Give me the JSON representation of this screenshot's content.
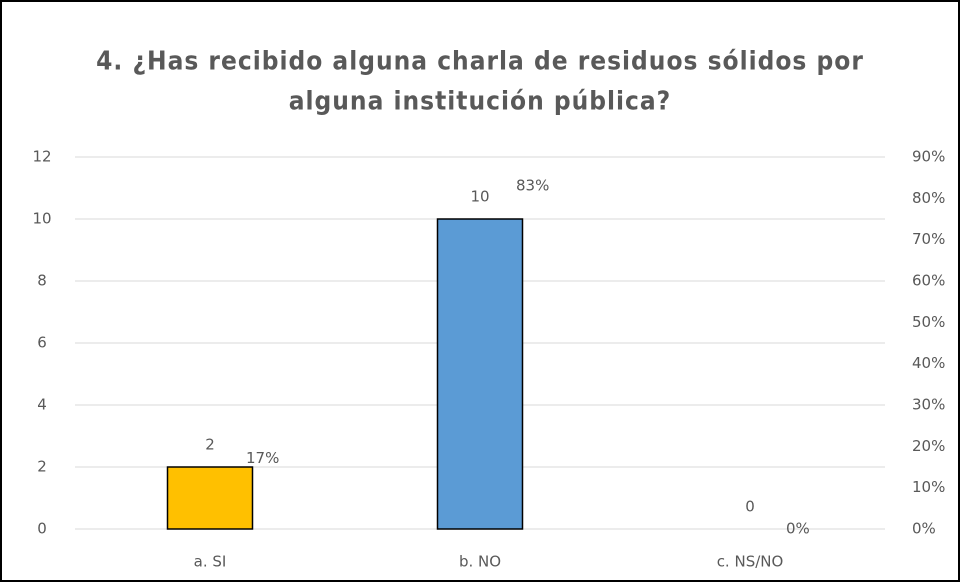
{
  "chart_data": {
    "type": "bar",
    "title": [
      "4. ¿Has recibido alguna charla de residuos sólidos por",
      "alguna institución pública?"
    ],
    "categories": [
      "a. SI",
      "b. NO",
      "c. NS/NO"
    ],
    "series": [
      {
        "values": [
          2,
          10,
          0
        ],
        "colors": [
          "#ffc000",
          "#5b9bd5",
          "#a5a5a5"
        ]
      },
      {
        "values": [
          17,
          83,
          0
        ],
        "value_labels": [
          "17%",
          "83%",
          "0%"
        ],
        "axis": "y2"
      }
    ],
    "ylim": [
      0,
      12
    ],
    "yticks": [
      0,
      2,
      4,
      6,
      8,
      10,
      12
    ],
    "y2lim": [
      0,
      90
    ],
    "y2ticks": [
      {
        "value": 0,
        "label": "0%"
      },
      {
        "value": 10,
        "label": "10%"
      },
      {
        "value": 20,
        "label": "20%"
      },
      {
        "value": 30,
        "label": "30%"
      },
      {
        "value": 40,
        "label": "40%"
      },
      {
        "value": 50,
        "label": "50%"
      },
      {
        "value": 60,
        "label": "60%"
      },
      {
        "value": 70,
        "label": "70%"
      },
      {
        "value": 80,
        "label": "80%"
      },
      {
        "value": 90,
        "label": "90%"
      }
    ],
    "grid": true
  }
}
